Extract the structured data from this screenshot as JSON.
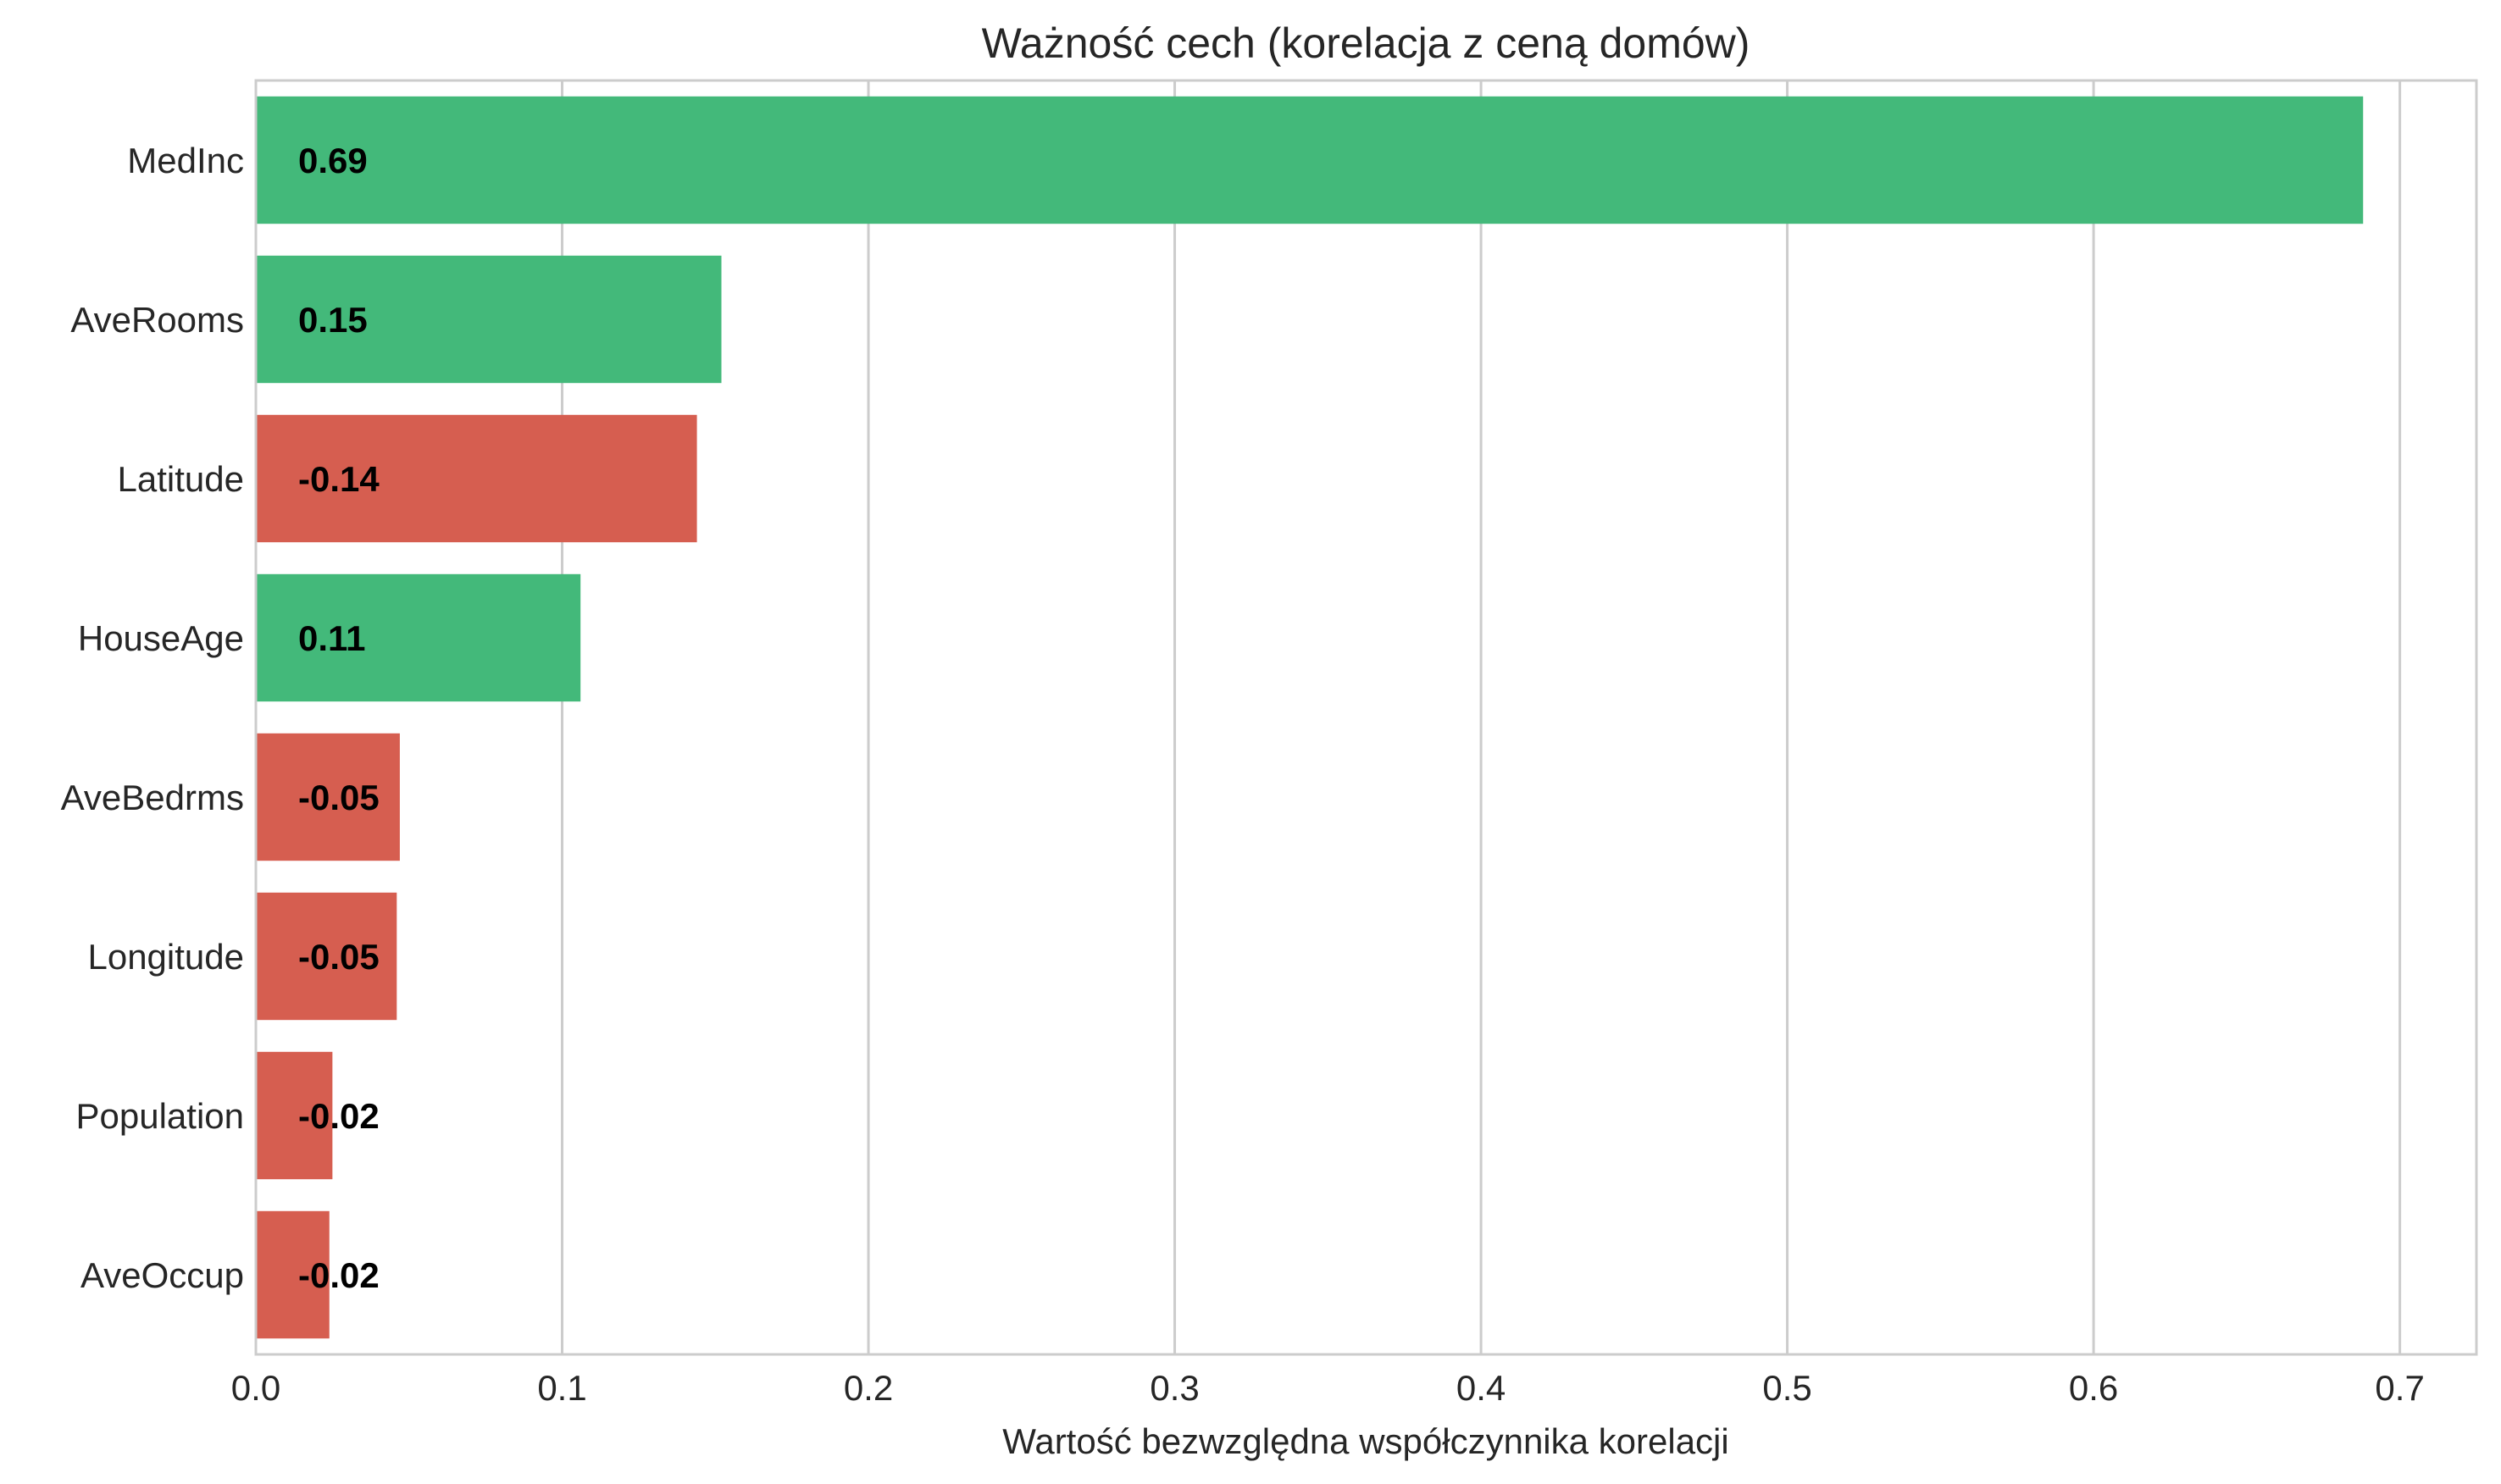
{
  "chart_data": {
    "type": "bar",
    "orientation": "horizontal",
    "title": "Ważność cech (korelacja z ceną domów)",
    "xlabel": "Wartość bezwzględna współczynnika korelacji",
    "ylabel": "",
    "xlim": [
      0,
      0.725
    ],
    "xticks": [
      "0.0",
      "0.1",
      "0.2",
      "0.3",
      "0.4",
      "0.5",
      "0.6",
      "0.7"
    ],
    "xtick_values": [
      0,
      0.1,
      0.2,
      0.3,
      0.4,
      0.5,
      0.6,
      0.7
    ],
    "grid": true,
    "categories": [
      "MedInc",
      "AveRooms",
      "Latitude",
      "HouseAge",
      "AveBedrms",
      "Longitude",
      "Population",
      "AveOccup"
    ],
    "values": [
      0.688,
      0.152,
      0.144,
      0.106,
      0.047,
      0.046,
      0.025,
      0.024
    ],
    "labels": [
      "0.69",
      "0.15",
      "-0.14",
      "0.11",
      "-0.05",
      "-0.05",
      "-0.02",
      "-0.02"
    ],
    "bar_colors": [
      "#43b97a",
      "#43b97a",
      "#d65e50",
      "#43b97a",
      "#d65e50",
      "#d65e50",
      "#d65e50",
      "#d65e50"
    ],
    "colors": {
      "positive": "#43b97a",
      "negative": "#d65e50"
    }
  }
}
